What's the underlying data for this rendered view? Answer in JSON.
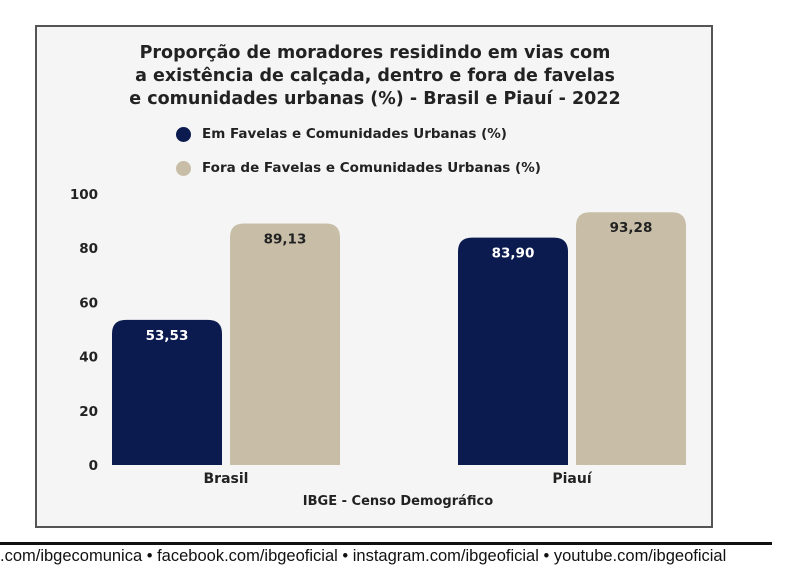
{
  "chart_data": {
    "type": "bar",
    "title": "Proporção de moradores residindo em vias com a existência de calçada, dentro e fora de favelas e comunidades urbanas (%) - Brasil e Piauí - 2022",
    "title_lines": [
      "Proporção de moradores residindo em vias com",
      "a existência de calçada, dentro e fora de favelas",
      "e comunidades urbanas (%) - Brasil e Piauí - 2022"
    ],
    "categories": [
      "Brasil",
      "Piauí"
    ],
    "series": [
      {
        "name": "Em Favelas e Comunidades Urbanas (%)",
        "values": [
          53.53,
          83.9
        ],
        "labels": [
          "53,53",
          "83,90"
        ],
        "color": "#0b1b4f"
      },
      {
        "name": "Fora de Favelas e Comunidades Urbanas (%)",
        "values": [
          89.13,
          93.28
        ],
        "labels": [
          "89,13",
          "93,28"
        ],
        "color": "#c8bea8"
      }
    ],
    "ylim": [
      0,
      100
    ],
    "yticks": [
      "0",
      "20",
      "40",
      "60",
      "80",
      "100"
    ],
    "legend_placement": "top",
    "grid": false,
    "source": "IBGE - Censo Demográfico"
  },
  "footer": ".com/ibgecomunica • facebook.com/ibgeoficial • instagram.com/ibgeoficial • youtube.com/ibgeoficial"
}
